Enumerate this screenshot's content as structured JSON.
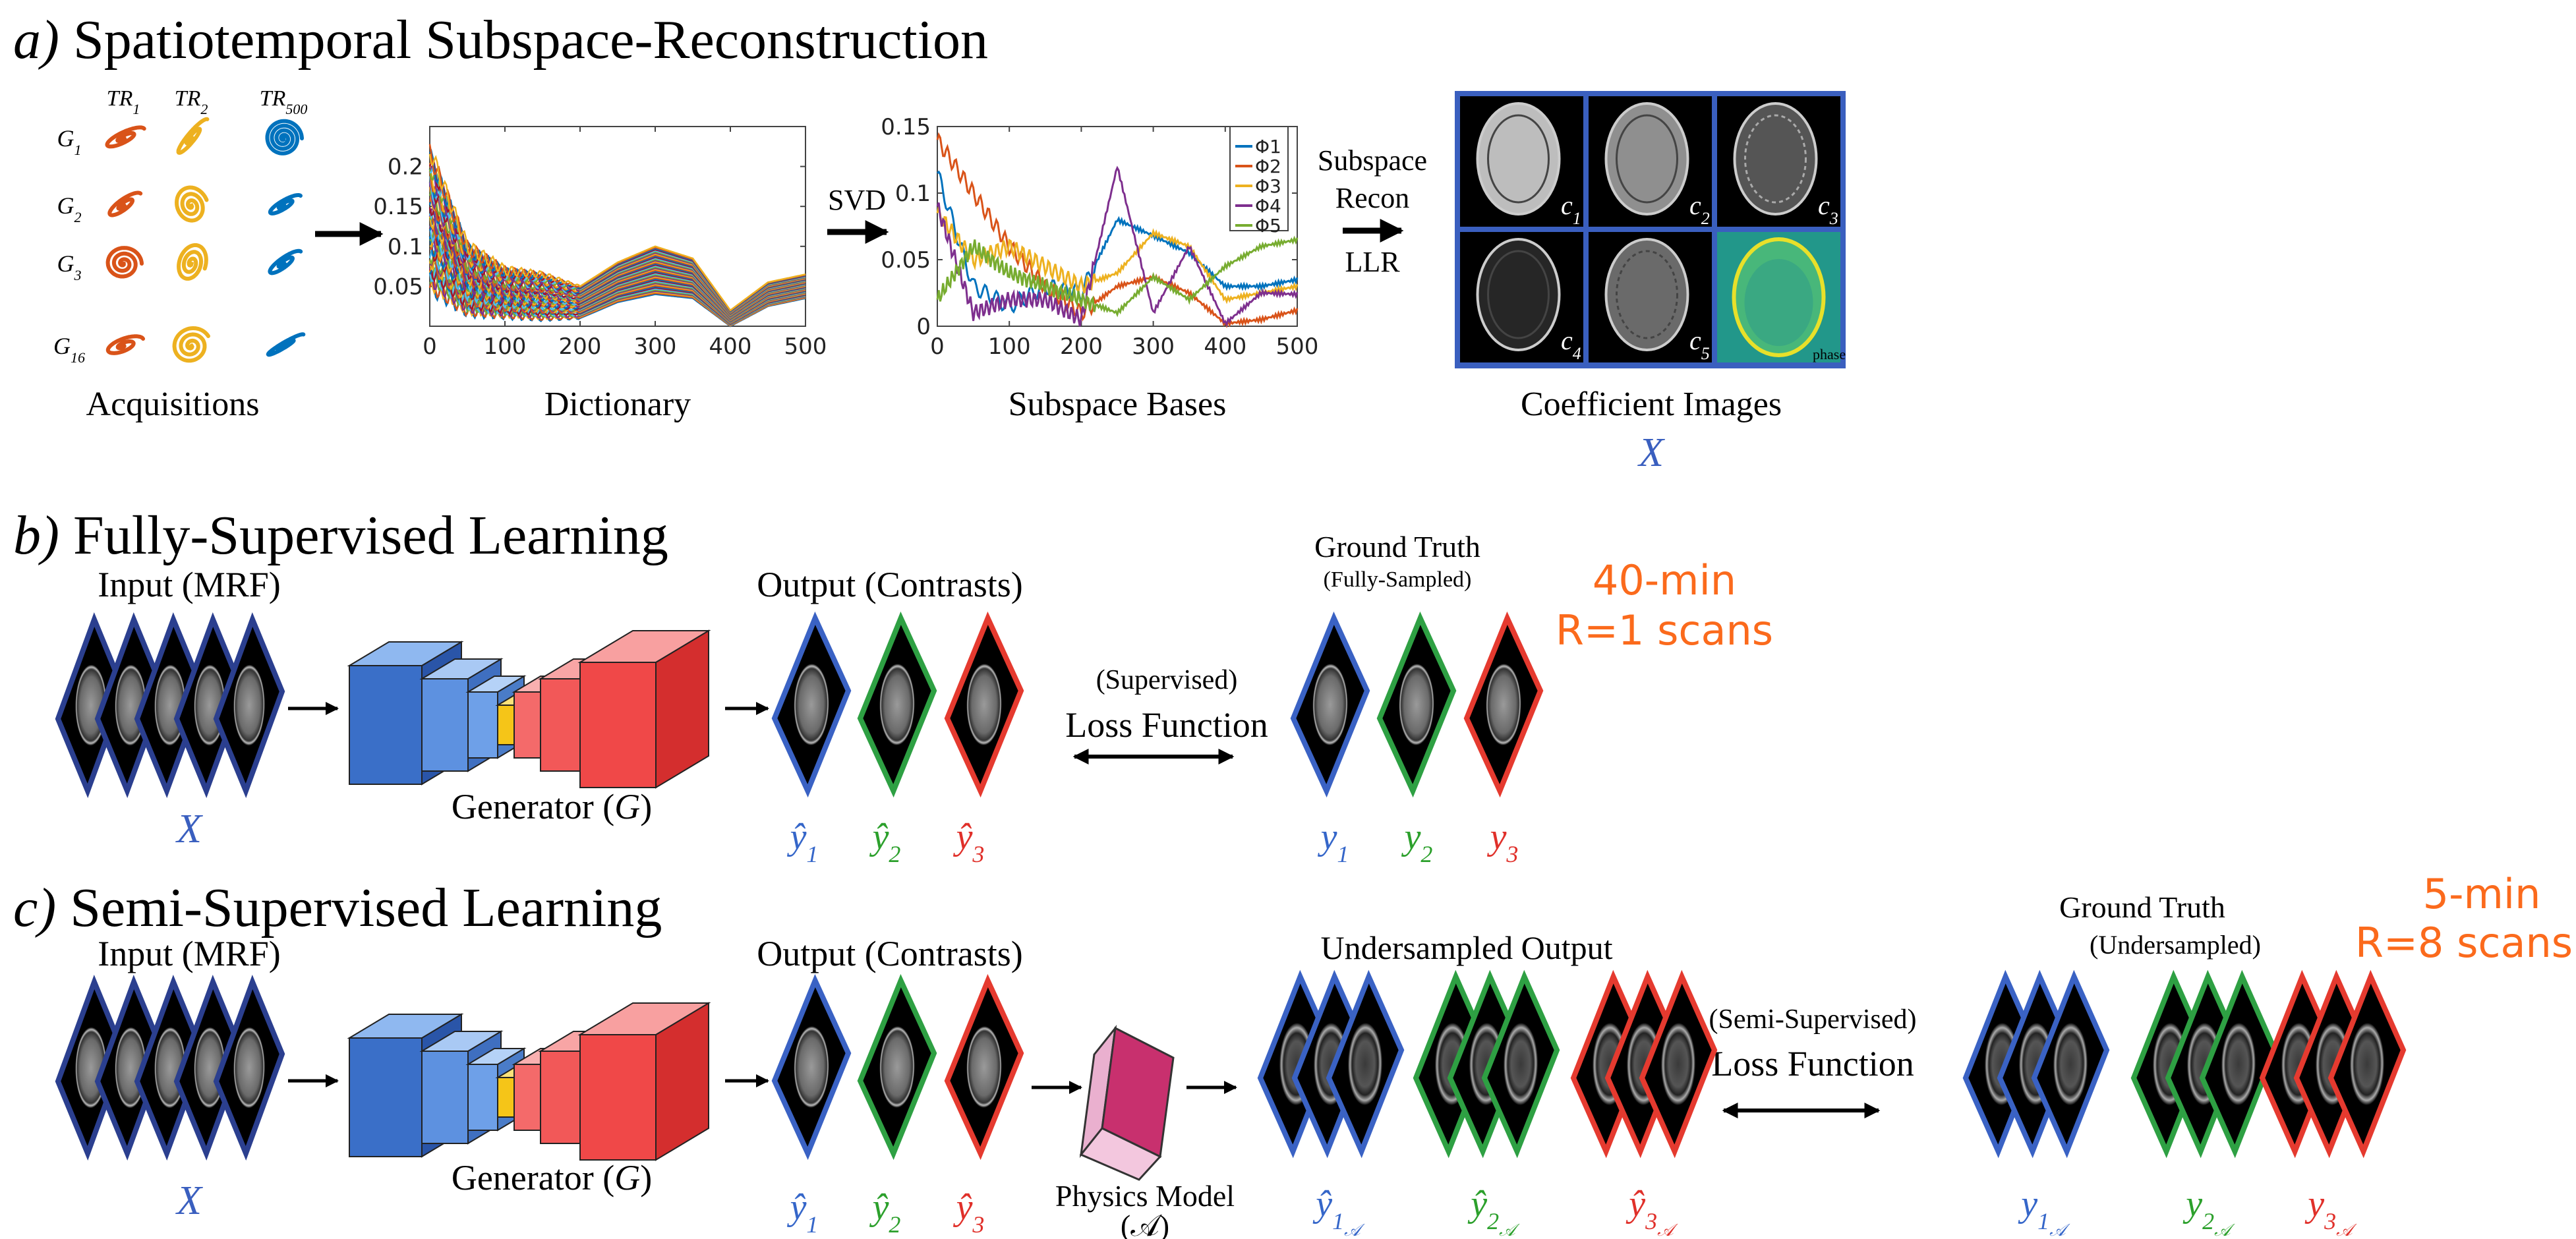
{
  "colors": {
    "blue_border": "#3a62c4",
    "green_border": "#2ea043",
    "red_border": "#e53a2f",
    "input_border": "#2b3f8f",
    "blue_label": "#3566c9",
    "green_label": "#2ca02c",
    "red_label": "#e0302a",
    "orange_text": "#fb6a1c",
    "matlab": [
      "#0072bd",
      "#d95319",
      "#edb120",
      "#7e2f8e",
      "#77ac30",
      "#4dbeee",
      "#a2142f"
    ]
  },
  "panel_a": {
    "label": "a)",
    "title": "Spatiotemporal Subspace-Reconstruction",
    "acquisitions": {
      "tr_labels": [
        {
          "base": "TR",
          "sub": "1"
        },
        {
          "base": "TR",
          "sub": "2"
        },
        {
          "base": "TR",
          "sub": "500"
        }
      ],
      "g_labels": [
        {
          "base": "G",
          "sub": "1"
        },
        {
          "base": "G",
          "sub": "2"
        },
        {
          "base": "G",
          "sub": "3"
        },
        {
          "base": "G",
          "sub": "16"
        }
      ],
      "caption": "Acquisitions"
    },
    "dictionary_caption": "Dictionary",
    "svd_label": "SVD",
    "subspace_caption": "Subspace Bases",
    "recon_lines": [
      "Subspace",
      "Recon",
      "LLR"
    ],
    "coefficient_images": {
      "cells": [
        {
          "base": "c",
          "sub": "1"
        },
        {
          "base": "c",
          "sub": "2"
        },
        {
          "base": "c",
          "sub": "3"
        },
        {
          "base": "c",
          "sub": "4"
        },
        {
          "base": "c",
          "sub": "5"
        }
      ],
      "phase_label": "phase",
      "caption": "Coefficient Images",
      "symbol": "X"
    }
  },
  "panel_b": {
    "label": "b)",
    "title": "Fully-Supervised Learning",
    "input_label": "Input (MRF)",
    "input_symbol": "X",
    "generator_label": "Generator (",
    "generator_symbol": "G",
    "generator_close": ")",
    "output_label": "Output (Contrasts)",
    "outputs": [
      {
        "base": "ŷ",
        "sub": "1"
      },
      {
        "base": "ŷ",
        "sub": "2"
      },
      {
        "base": "ŷ",
        "sub": "3"
      }
    ],
    "loss_qualifier": "(Supervised)",
    "loss_label": "Loss Function",
    "gt_label": "Ground Truth",
    "gt_sub": "(Fully-Sampled)",
    "targets": [
      {
        "base": "y",
        "sub": "1"
      },
      {
        "base": "y",
        "sub": "2"
      },
      {
        "base": "y",
        "sub": "3"
      }
    ],
    "scan_time": "40-min",
    "scan_accel": "R=1 scans"
  },
  "panel_c": {
    "label": "c)",
    "title": "Semi-Supervised Learning",
    "input_label": "Input (MRF)",
    "input_symbol": "X",
    "generator_label": "Generator (",
    "generator_symbol": "G",
    "generator_close": ")",
    "output_label": "Output (Contrasts)",
    "outputs": [
      {
        "base": "ŷ",
        "sub": "1"
      },
      {
        "base": "ŷ",
        "sub": "2"
      },
      {
        "base": "ŷ",
        "sub": "3"
      }
    ],
    "physics_label": "Physics Model",
    "physics_symbol": "(𝒜)",
    "undersampled_label": "Undersampled Output",
    "undersampled_outputs": [
      {
        "base": "ŷ",
        "sub": "1",
        "subsub": "𝒜"
      },
      {
        "base": "ŷ",
        "sub": "2",
        "subsub": "𝒜"
      },
      {
        "base": "ŷ",
        "sub": "3",
        "subsub": "𝒜"
      }
    ],
    "loss_qualifier": "(Semi-Supervised)",
    "loss_label": "Loss Function",
    "gt_label": "Ground Truth",
    "gt_sub": "(Undersampled)",
    "targets": [
      {
        "base": "y",
        "sub": "1",
        "subsub": "𝒜"
      },
      {
        "base": "y",
        "sub": "2",
        "subsub": "𝒜"
      },
      {
        "base": "y",
        "sub": "3",
        "subsub": "𝒜"
      }
    ],
    "scan_time": "5-min",
    "scan_accel": "R=8 scans"
  },
  "chart_data": [
    {
      "type": "line",
      "title": "Dictionary",
      "xlabel": "",
      "ylabel": "",
      "xlim": [
        0,
        500
      ],
      "ylim": [
        0,
        0.25
      ],
      "xticks": [
        "0",
        "100",
        "200",
        "300",
        "400",
        "500"
      ],
      "yticks": [
        "0.05",
        "0.1",
        "0.15",
        "0.2"
      ],
      "x": [
        0,
        50,
        100,
        150,
        200,
        250,
        300,
        350,
        400,
        450,
        500
      ],
      "series": [
        {
          "name": "envelope-upper",
          "values": [
            0.22,
            0.1,
            0.07,
            0.065,
            0.05,
            0.08,
            0.1,
            0.085,
            0.02,
            0.055,
            0.065
          ]
        },
        {
          "name": "envelope-lower",
          "values": [
            0.05,
            0.02,
            0.015,
            0.01,
            0.01,
            0.03,
            0.04,
            0.035,
            0.0,
            0.025,
            0.035
          ]
        }
      ],
      "legend": "none"
    },
    {
      "type": "line",
      "title": "Subspace Bases",
      "xlabel": "",
      "ylabel": "",
      "xlim": [
        0,
        500
      ],
      "ylim": [
        0,
        0.15
      ],
      "xticks": [
        "0",
        "100",
        "200",
        "300",
        "400",
        "500"
      ],
      "yticks": [
        "0",
        "0.05",
        "0.1",
        "0.15"
      ],
      "x": [
        0,
        50,
        100,
        150,
        200,
        250,
        300,
        350,
        400,
        450,
        500
      ],
      "series": [
        {
          "name": "Φ1",
          "values": [
            0.115,
            0.03,
            0.015,
            0.03,
            0.025,
            0.08,
            0.068,
            0.055,
            0.03,
            0.03,
            0.035
          ]
        },
        {
          "name": "Φ2",
          "values": [
            0.14,
            0.1,
            0.06,
            0.03,
            0.01,
            0.03,
            0.037,
            0.025,
            0.002,
            0.005,
            0.012
          ]
        },
        {
          "name": "Φ3",
          "values": [
            0.085,
            0.05,
            0.06,
            0.045,
            0.03,
            0.04,
            0.07,
            0.06,
            0.02,
            0.025,
            0.03
          ]
        },
        {
          "name": "Φ4",
          "values": [
            0.09,
            0.01,
            0.02,
            0.02,
            0.005,
            0.12,
            0.01,
            0.06,
            0.002,
            0.025,
            0.024
          ]
        },
        {
          "name": "Φ5",
          "values": [
            0.02,
            0.06,
            0.04,
            0.03,
            0.02,
            0.01,
            0.037,
            0.02,
            0.045,
            0.06,
            0.065
          ]
        }
      ],
      "legend": "top-right"
    }
  ]
}
